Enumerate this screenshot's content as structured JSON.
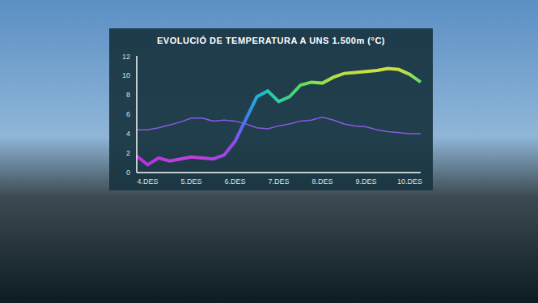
{
  "chart_data": {
    "type": "line",
    "title": "EVOLUCIÓ DE TEMPERATURA A UNS 1.500m (°C)",
    "categories": [
      null,
      "4.DES",
      null,
      null,
      null,
      "5.DES",
      null,
      null,
      null,
      "6.DES",
      null,
      null,
      null,
      "7.DES",
      null,
      null,
      null,
      "8.DES",
      null,
      null,
      null,
      "9.DES",
      null,
      null,
      null,
      "10.DES",
      null
    ],
    "series": [
      {
        "colors": [
          "#b030e0",
          "#b434e0",
          "#b838e0",
          "#bc3ce0",
          "#c040e0",
          "#c040dc",
          "#bc40dc",
          "#b040e0",
          "#a044e8",
          "#8a4cf0",
          "#3f7cf0",
          "#20b0e0",
          "#20c8b0",
          "#30d0a0",
          "#40d080",
          "#60d860",
          "#80e050",
          "#90e04c",
          "#b0e040",
          "#b8e040",
          "#c0e040",
          "#c8e040",
          "#d0e040",
          "#d0e040",
          "#c8e040",
          "#a0e050",
          "#60d870"
        ],
        "values": [
          1.7,
          0.8,
          1.5,
          1.2,
          1.4,
          1.6,
          1.5,
          1.4,
          1.8,
          3.2,
          5.5,
          7.8,
          8.4,
          7.3,
          7.8,
          9.0,
          9.3,
          9.2,
          9.8,
          10.2,
          10.3,
          10.4,
          10.5,
          10.7,
          10.6,
          10.1,
          9.3
        ]
      },
      {
        "color": "#8a5ae0",
        "values": [
          4.4,
          4.4,
          4.6,
          4.9,
          5.2,
          5.6,
          5.6,
          5.3,
          5.4,
          5.3,
          5.0,
          4.6,
          4.5,
          4.8,
          5.0,
          5.3,
          5.4,
          5.7,
          5.4,
          5.0,
          4.8,
          4.7,
          4.4,
          4.2,
          4.1,
          4.0,
          4.0
        ]
      }
    ],
    "ylim": [
      0,
      12
    ],
    "yticks": [
      0,
      2,
      4,
      6,
      8,
      10,
      12
    ],
    "grid": false
  }
}
